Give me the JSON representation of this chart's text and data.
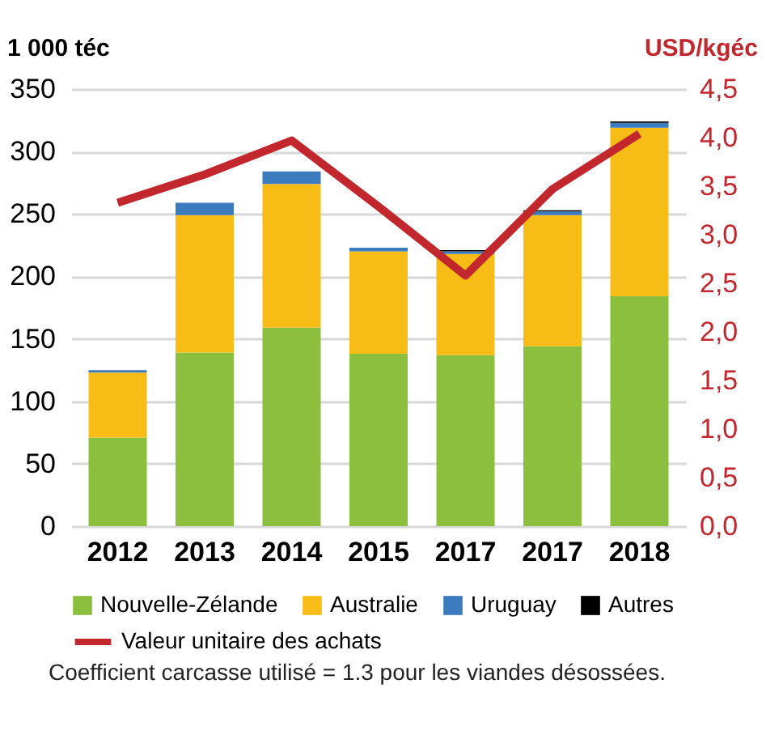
{
  "chart_data": {
    "type": "bar",
    "stacked": true,
    "ylabel": "1 000 téc",
    "y2label": "USD/kgéc",
    "categories": [
      "2012",
      "2013",
      "2014",
      "2015",
      "2017",
      "2017",
      "2018"
    ],
    "series": [
      {
        "name": "Nouvelle-Zélande",
        "color": "#8dbf3f",
        "values": [
          71,
          139,
          159,
          138,
          137,
          144,
          184
        ]
      },
      {
        "name": "Australie",
        "color": "#f7bd16",
        "values": [
          52,
          110,
          115,
          82,
          81,
          105,
          135
        ]
      },
      {
        "name": "Uruguay",
        "color": "#3d7bbf",
        "values": [
          2,
          10,
          10,
          3,
          2,
          3,
          4
        ]
      },
      {
        "name": "Autres",
        "color": "#000000",
        "values": [
          0,
          0,
          0,
          0,
          1,
          1,
          1
        ]
      },
      {
        "name": "Valeur unitaire des achats",
        "type": "line",
        "axis": "y2",
        "color": "#c1272d",
        "values": [
          3.33,
          3.62,
          3.97,
          3.29,
          2.58,
          3.47,
          4.04
        ]
      }
    ],
    "ylim": [
      0,
      350
    ],
    "yticks": [
      0,
      50,
      100,
      150,
      200,
      250,
      300,
      350
    ],
    "y2lim": [
      0,
      4.5
    ],
    "y2ticks": [
      {
        "value": 0,
        "label": "0,0"
      },
      {
        "value": 0.5,
        "label": "0,5"
      },
      {
        "value": 1,
        "label": "1,0"
      },
      {
        "value": 1.5,
        "label": "1,5"
      },
      {
        "value": 2,
        "label": "2,0"
      },
      {
        "value": 2.5,
        "label": "2,5"
      },
      {
        "value": 3,
        "label": "3,0"
      },
      {
        "value": 3.5,
        "label": "3,5"
      },
      {
        "value": 4,
        "label": "4,0"
      },
      {
        "value": 4.5,
        "label": "4,5"
      }
    ],
    "grid": "y",
    "legend": "bottom",
    "annotations": [
      "Coefficient carcasse utilisé = 1.3 pour les viandes désossées."
    ]
  }
}
